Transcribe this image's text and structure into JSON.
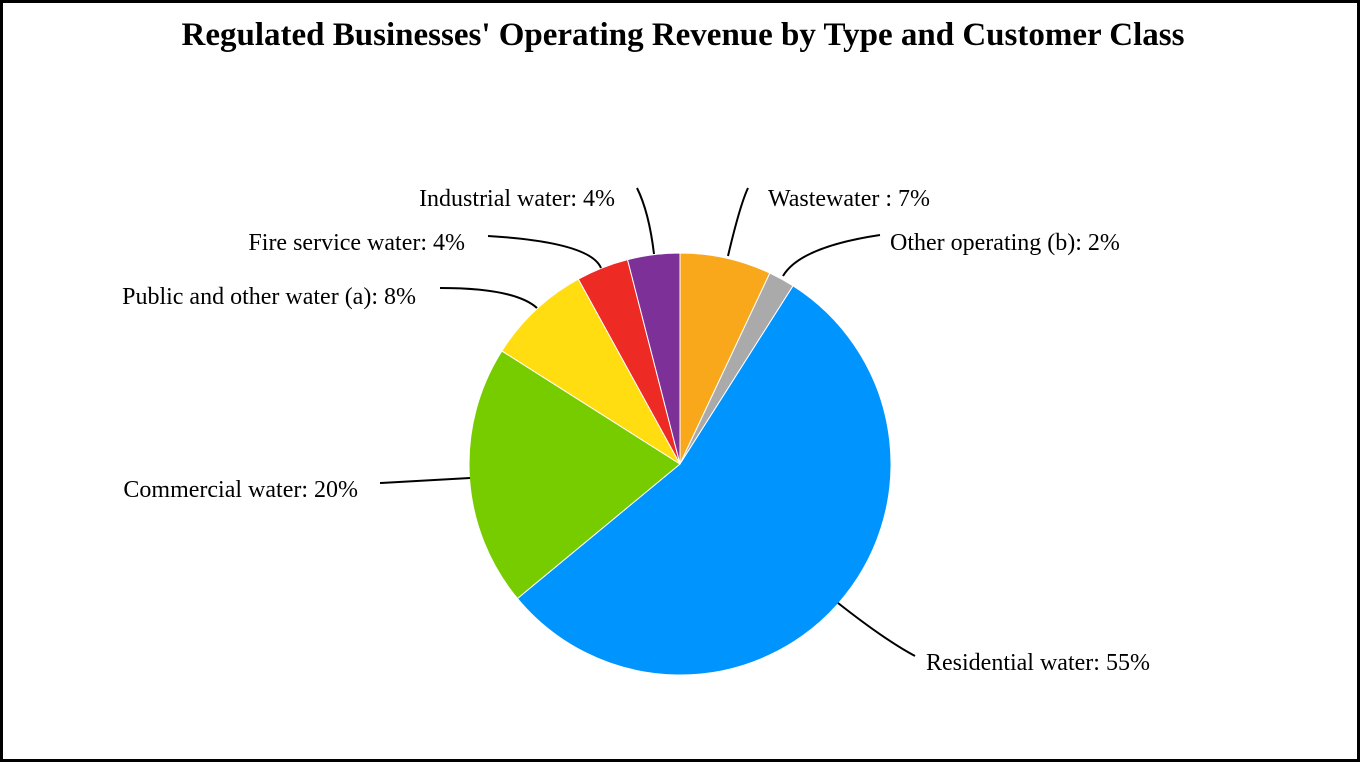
{
  "chart_data": {
    "type": "pie",
    "title": "Regulated Businesses' Operating Revenue by Type and Customer Class",
    "start_angle_deg": 0,
    "direction": "clockwise",
    "slices": [
      {
        "name": "Wastewater",
        "value": 7,
        "label": "Wastewater : 7%",
        "color": "#F9A81B"
      },
      {
        "name": "Other operating (b)",
        "value": 2,
        "label": "Other operating (b): 2%",
        "color": "#AAAAAA"
      },
      {
        "name": "Residential water",
        "value": 55,
        "label": "Residential water: 55%",
        "color": "#0094FF"
      },
      {
        "name": "Commercial water",
        "value": 20,
        "label": "Commercial water: 20%",
        "color": "#77CC00"
      },
      {
        "name": "Public and other water (a)",
        "value": 8,
        "label": "Public and other water (a): 8%",
        "color": "#FFDD11"
      },
      {
        "name": "Fire service water",
        "value": 4,
        "label": "Fire service water: 4%",
        "color": "#EE2A24"
      },
      {
        "name": "Industrial water",
        "value": 4,
        "label": "Industrial water: 4%",
        "color": "#7D3198"
      }
    ]
  }
}
